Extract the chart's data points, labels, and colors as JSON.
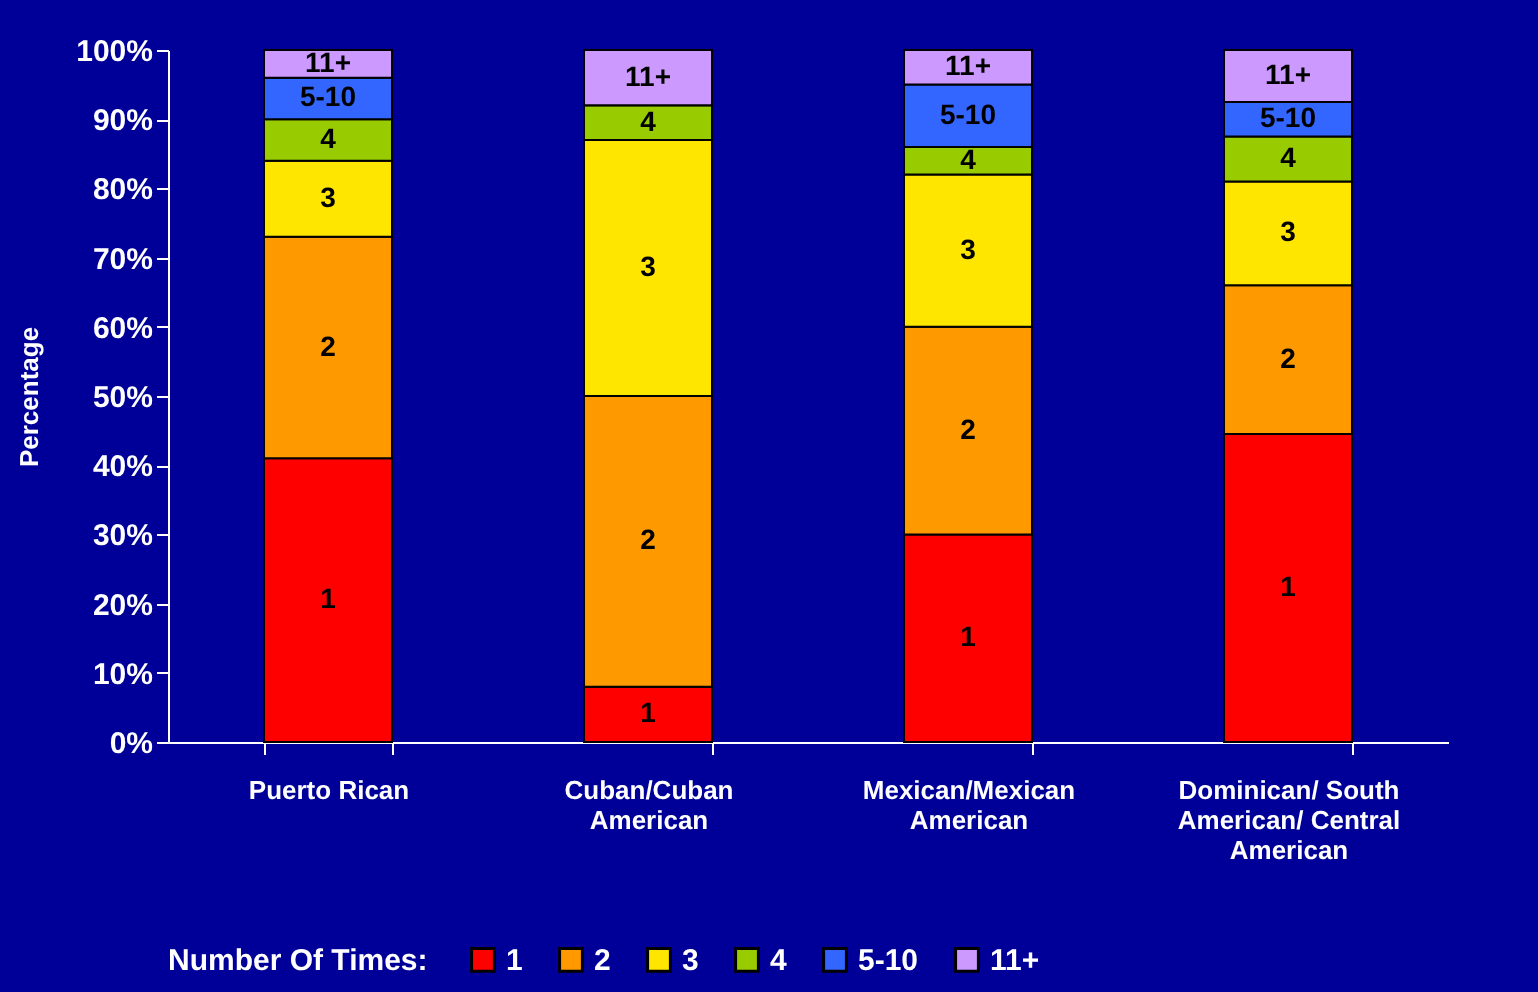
{
  "chart_data": {
    "type": "bar",
    "stacked": true,
    "ylabel": "Percentage",
    "legend_title": "Number Of Times:",
    "legend": "bottom",
    "grid": false,
    "categories": [
      "Puerto Rican",
      "Cuban/Cuban American",
      "Mexican/Mexican American",
      "Dominican/ South American/ Central American"
    ],
    "ylim": [
      0,
      100
    ],
    "yticks": [
      {
        "value": 0,
        "label": "0%"
      },
      {
        "value": 10,
        "label": "10%"
      },
      {
        "value": 20,
        "label": "20%"
      },
      {
        "value": 30,
        "label": "30%"
      },
      {
        "value": 40,
        "label": "40%"
      },
      {
        "value": 50,
        "label": "50%"
      },
      {
        "value": 60,
        "label": "60%"
      },
      {
        "value": 70,
        "label": "70%"
      },
      {
        "value": 80,
        "label": "80%"
      },
      {
        "value": 90,
        "label": "90%"
      },
      {
        "value": 100,
        "label": "100%"
      }
    ],
    "series": [
      {
        "name": "1",
        "color": "#ff0000",
        "values": [
          41,
          8,
          30,
          44.5
        ]
      },
      {
        "name": "2",
        "color": "#ff9900",
        "values": [
          32,
          42,
          30,
          21.5
        ]
      },
      {
        "name": "3",
        "color": "#ffe600",
        "values": [
          11,
          37,
          22,
          15
        ]
      },
      {
        "name": "4",
        "color": "#99cc00",
        "values": [
          6,
          5,
          4,
          6.5
        ]
      },
      {
        "name": "5-10",
        "color": "#3366ff",
        "values": [
          6,
          0,
          9,
          5
        ]
      },
      {
        "name": "11+",
        "color": "#cc99ff",
        "values": [
          4,
          8,
          5,
          7.5
        ]
      }
    ]
  }
}
